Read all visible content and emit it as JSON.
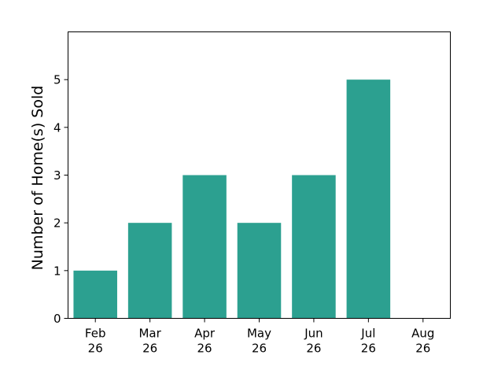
{
  "chart_data": {
    "type": "bar",
    "categories": [
      "Feb 26",
      "Mar 26",
      "Apr 26",
      "May 26",
      "Jun 26",
      "Jul 26"
    ],
    "values": [
      1,
      2,
      3,
      2,
      3,
      5
    ],
    "x_tick_labels": [
      [
        "Feb",
        "26"
      ],
      [
        "Mar",
        "26"
      ],
      [
        "Apr",
        "26"
      ],
      [
        "May",
        "26"
      ],
      [
        "Jun",
        "26"
      ],
      [
        "Jul",
        "26"
      ],
      [
        "Aug",
        "26"
      ]
    ],
    "y_ticks": [
      0,
      1,
      2,
      3,
      4,
      5
    ],
    "ylim": [
      0,
      6
    ],
    "title": "",
    "xlabel": "",
    "ylabel": "Number of Home(s) Sold",
    "bar_color": "#2ca090",
    "grid": false,
    "legend": "none"
  }
}
